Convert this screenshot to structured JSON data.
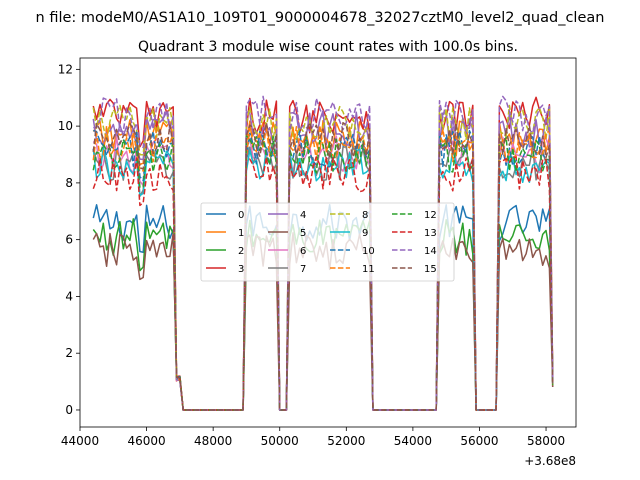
{
  "chart_data": {
    "type": "line",
    "suptitle": "n file: modeM0/AS1A10_109T01_9000004678_32027cztM0_level2_quad_clean",
    "title": "Quadrant 3 module wise count rates with 100.0s bins.",
    "xlabel": "",
    "ylabel": "",
    "x_offset_label": "+3.68e8",
    "xlim": [
      44000,
      58900
    ],
    "ylim": [
      -0.6,
      12.4
    ],
    "x_ticks": [
      44000,
      46000,
      48000,
      50000,
      52000,
      54000,
      56000,
      58000
    ],
    "x_tick_labels": [
      "44000",
      "46000",
      "48000",
      "50000",
      "52000",
      "54000",
      "56000",
      "58000"
    ],
    "y_ticks": [
      0,
      2,
      4,
      6,
      8,
      10,
      12
    ],
    "y_tick_labels": [
      "0",
      "2",
      "4",
      "6",
      "8",
      "10",
      "12"
    ],
    "grid": false,
    "legend_position": "center",
    "legend_columns": 4,
    "bin_seconds": 100,
    "x_start": 44400,
    "x_step": 100,
    "segments": [
      {
        "start": 44400,
        "end": 46800,
        "state": "on"
      },
      {
        "start": 46900,
        "end": 47000,
        "state": "fall"
      },
      {
        "start": 47100,
        "end": 48900,
        "state": "off"
      },
      {
        "start": 49000,
        "end": 49900,
        "state": "on"
      },
      {
        "start": 50000,
        "end": 50200,
        "state": "off"
      },
      {
        "start": 50300,
        "end": 52700,
        "state": "on"
      },
      {
        "start": 52800,
        "end": 54700,
        "state": "off"
      },
      {
        "start": 54800,
        "end": 55800,
        "state": "on"
      },
      {
        "start": 55900,
        "end": 56500,
        "state": "off"
      },
      {
        "start": 56600,
        "end": 58100,
        "state": "on"
      },
      {
        "start": 58200,
        "end": 58200,
        "state": "fall"
      }
    ],
    "series": [
      {
        "name": "0",
        "color": "#1f77b4",
        "dash": "solid",
        "level": 6.6
      },
      {
        "name": "1",
        "color": "#ff7f0e",
        "dash": "solid",
        "level": 9.6
      },
      {
        "name": "2",
        "color": "#2ca02c",
        "dash": "solid",
        "level": 6.1
      },
      {
        "name": "3",
        "color": "#d62728",
        "dash": "solid",
        "level": 10.4
      },
      {
        "name": "4",
        "color": "#9467bd",
        "dash": "solid",
        "level": 9.9
      },
      {
        "name": "5",
        "color": "#8c564b",
        "dash": "solid",
        "level": 5.6
      },
      {
        "name": "6",
        "color": "#e377c2",
        "dash": "solid",
        "level": 9.0
      },
      {
        "name": "7",
        "color": "#7f7f7f",
        "dash": "solid",
        "level": 8.7
      },
      {
        "name": "8",
        "color": "#bcbd22",
        "dash": "dashed",
        "level": 10.1
      },
      {
        "name": "9",
        "color": "#17becf",
        "dash": "solid",
        "level": 8.6
      },
      {
        "name": "10",
        "color": "#1f77b4",
        "dash": "dashed",
        "level": 9.2
      },
      {
        "name": "11",
        "color": "#ff7f0e",
        "dash": "dashed",
        "level": 9.4
      },
      {
        "name": "12",
        "color": "#2ca02c",
        "dash": "dashed",
        "level": 9.0
      },
      {
        "name": "13",
        "color": "#d62728",
        "dash": "dashed",
        "level": 8.3
      },
      {
        "name": "14",
        "color": "#9467bd",
        "dash": "dashed",
        "level": 10.4
      },
      {
        "name": "15",
        "color": "#8c564b",
        "dash": "dashed",
        "level": 9.5
      }
    ]
  }
}
